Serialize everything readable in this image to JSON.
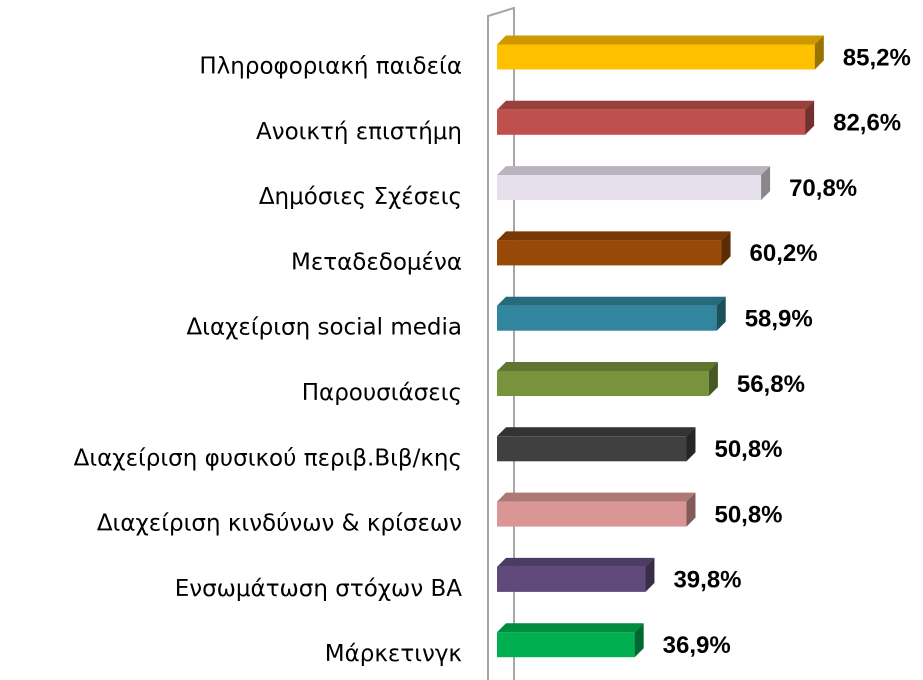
{
  "chart_data": {
    "type": "bar3d",
    "categories": [
      "Πληροφοριακή παιδεία",
      "Ανοικτή επιστήμη",
      "Δημόσιες Σχέσεις",
      "Μεταδεδομένα",
      "Διαχείριση social media",
      "Παρουσιάσεις",
      "Διαχείριση φυσικού περιβ.Βιβ/κης",
      "Διαχείριση κινδύνων & κρίσεων",
      "Ενσωμάτωση στόχων ΒΑ",
      "Μάρκετινγκ"
    ],
    "values": [
      85.2,
      82.6,
      70.8,
      60.2,
      58.9,
      56.8,
      50.8,
      50.8,
      39.8,
      36.9
    ],
    "value_labels": [
      "85,2%",
      "82,6%",
      "70,8%",
      "60,2%",
      "58,9%",
      "56,8%",
      "50,8%",
      "50,8%",
      "39,8%",
      "36,9%"
    ],
    "colors": [
      "#ffc000",
      "#c0504d",
      "#e6e0ec",
      "#984807",
      "#31859c",
      "#77933c",
      "#404040",
      "#d99694",
      "#604a7b",
      "#00b050"
    ],
    "xlim": [
      0,
      100
    ]
  }
}
